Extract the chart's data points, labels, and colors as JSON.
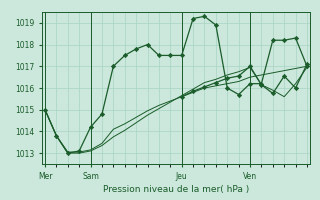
{
  "bg_color": "#cce8dc",
  "grid_color": "#a8d4c4",
  "line_color": "#1a5c2a",
  "title": "Pression niveau de la mer( hPa )",
  "ylim": [
    1012.5,
    1019.5
  ],
  "yticks": [
    1013,
    1014,
    1015,
    1016,
    1017,
    1018,
    1019
  ],
  "day_labels": [
    "Mer",
    "Sam",
    "Jeu",
    "Ven"
  ],
  "day_positions": [
    0,
    4,
    12,
    18
  ],
  "xlim": [
    -0.3,
    23.3
  ],
  "series1_x": [
    0,
    1,
    2,
    3,
    4,
    5,
    6,
    7,
    8,
    9,
    10,
    11,
    12,
    13,
    14,
    15,
    16,
    17,
    18,
    19,
    20,
    21,
    22,
    23
  ],
  "series1_y": [
    1015.0,
    1013.8,
    1013.0,
    1013.1,
    1014.2,
    1014.8,
    1017.0,
    1017.5,
    1017.8,
    1018.0,
    1017.5,
    1017.5,
    1017.5,
    1019.2,
    1019.3,
    1018.9,
    1016.0,
    1015.7,
    1016.2,
    1016.2,
    1018.2,
    1018.2,
    1018.3,
    1017.0
  ],
  "series2_x": [
    0,
    1,
    2,
    3,
    4,
    5,
    6,
    7,
    8,
    9,
    10,
    11,
    12,
    13,
    14,
    15,
    16,
    17,
    18,
    19,
    20,
    21,
    22,
    23
  ],
  "series2_y": [
    1015.0,
    1013.8,
    1013.05,
    1013.05,
    1013.15,
    1013.45,
    1014.1,
    1014.35,
    1014.65,
    1014.95,
    1015.2,
    1015.4,
    1015.6,
    1015.8,
    1016.0,
    1016.1,
    1016.2,
    1016.3,
    1016.5,
    1016.6,
    1016.7,
    1016.8,
    1016.9,
    1017.0
  ],
  "series3_x": [
    0,
    1,
    2,
    3,
    4,
    5,
    6,
    7,
    8,
    9,
    10,
    11,
    12,
    13,
    14,
    15,
    16,
    17,
    18,
    19,
    20,
    21,
    22,
    23
  ],
  "series3_y": [
    1015.0,
    1013.8,
    1013.0,
    1013.0,
    1013.1,
    1013.35,
    1013.75,
    1014.05,
    1014.4,
    1014.75,
    1015.05,
    1015.35,
    1015.65,
    1015.95,
    1016.25,
    1016.4,
    1016.6,
    1016.75,
    1016.95,
    1016.15,
    1015.9,
    1015.6,
    1016.2,
    1016.95
  ],
  "series4_x": [
    12,
    13,
    14,
    15,
    16,
    17,
    18,
    19,
    20,
    21,
    22,
    23
  ],
  "series4_y": [
    1015.6,
    1015.85,
    1016.05,
    1016.25,
    1016.45,
    1016.55,
    1017.0,
    1016.15,
    1015.75,
    1016.55,
    1016.0,
    1017.1
  ]
}
